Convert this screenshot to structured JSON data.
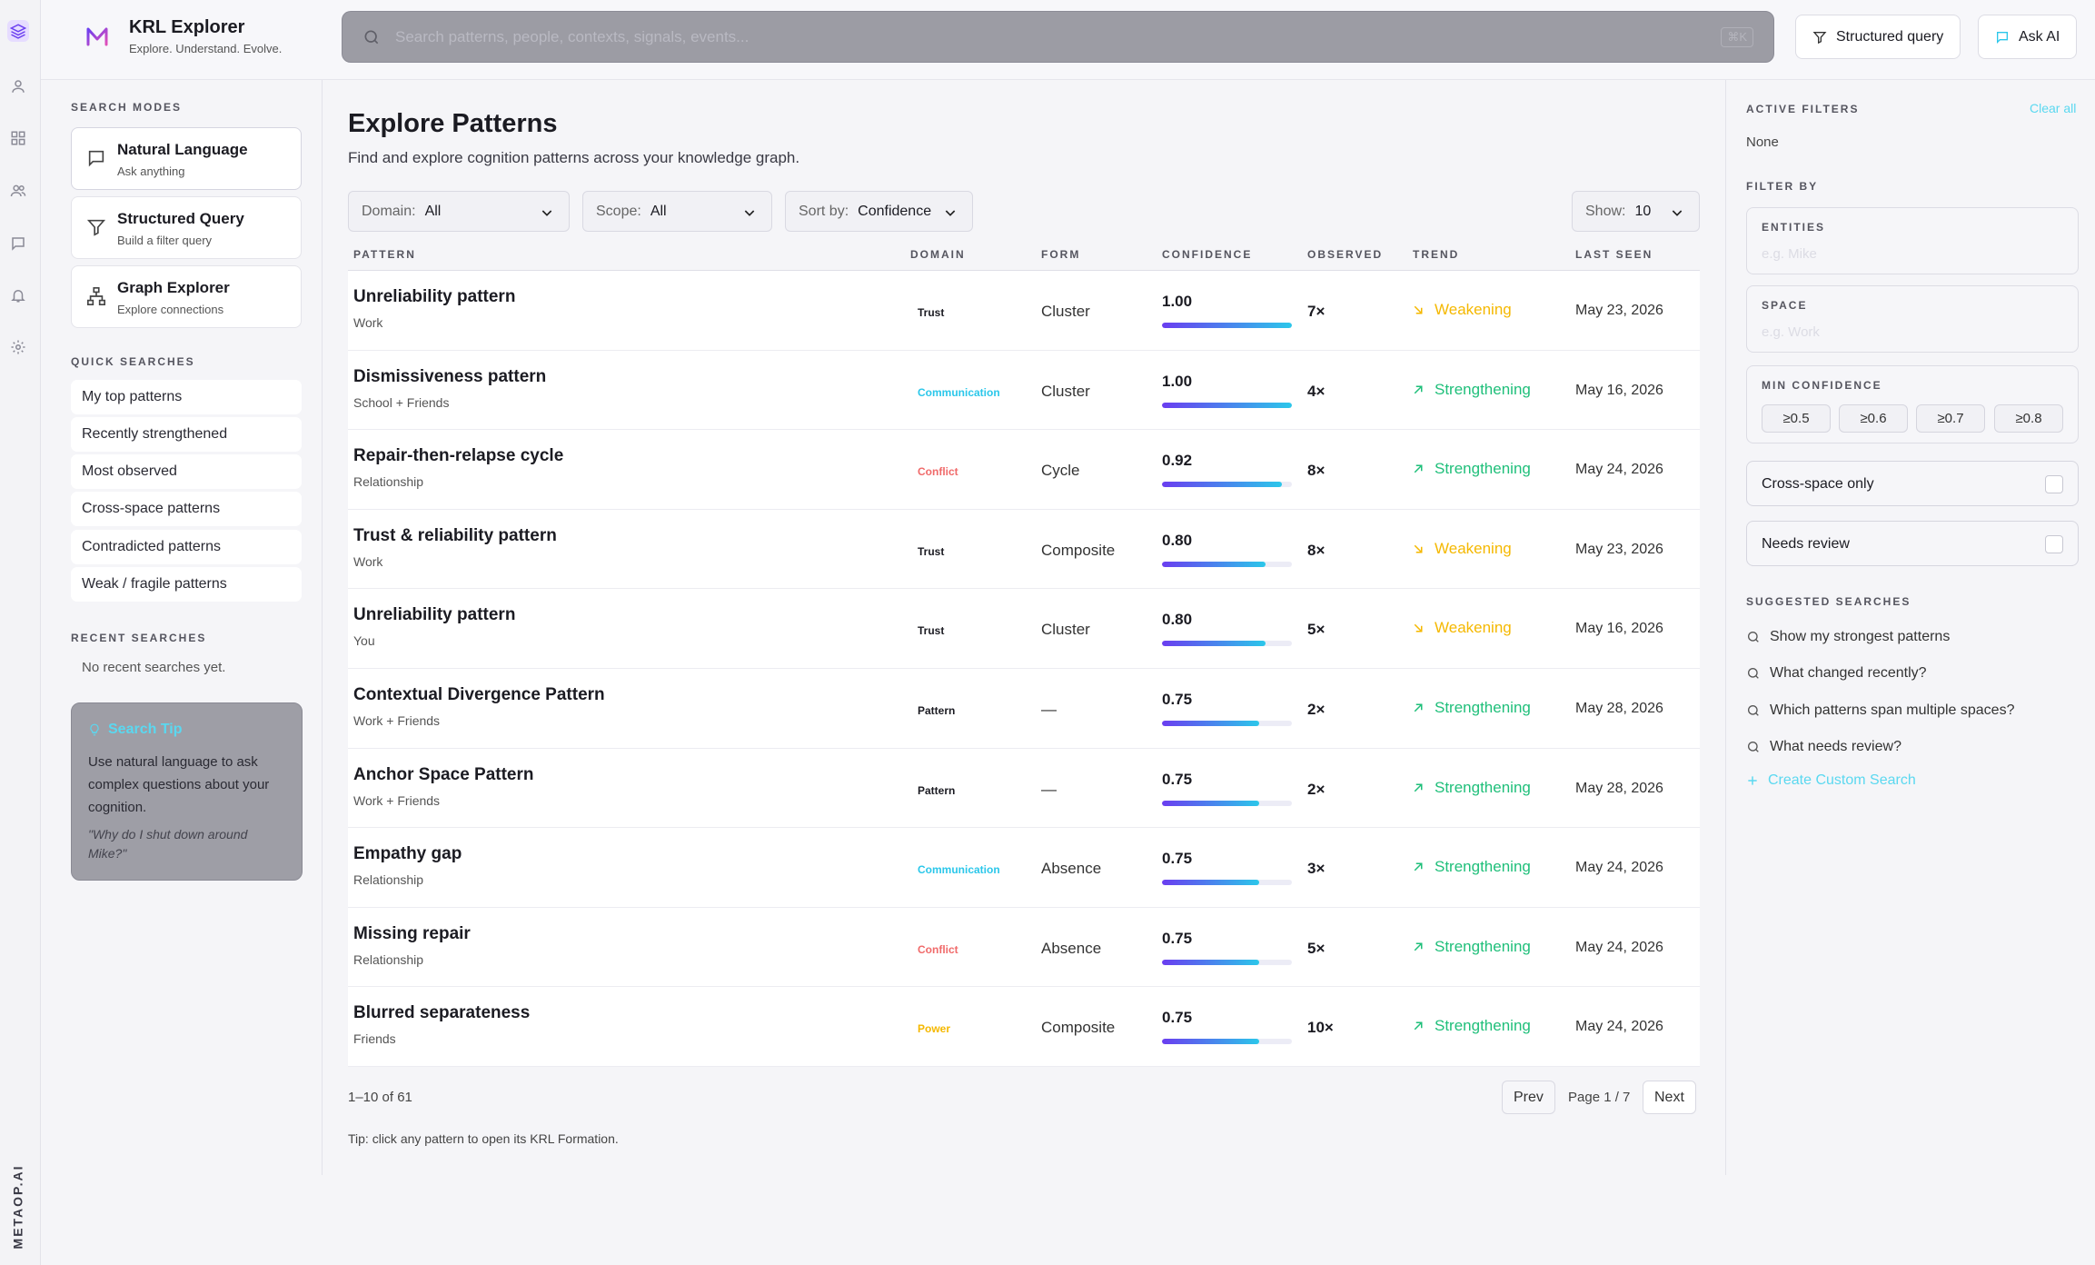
{
  "app": {
    "title": "KRL Explorer",
    "subtitle": "Explore. Understand. Evolve.",
    "brand": "METAOP.AI"
  },
  "search": {
    "placeholder": "Search patterns, people, contexts, signals, events...",
    "shortcut": "⌘K"
  },
  "topbar": {
    "structured_query_label": "Structured query",
    "ask_ai_label": "Ask AI"
  },
  "rail": {
    "icons": [
      "layers-icon",
      "user-icon",
      "grid-icon",
      "users-icon",
      "chat-icon",
      "bell-icon",
      "gear-icon"
    ]
  },
  "left": {
    "search_modes_title": "SEARCH MODES",
    "modes": [
      {
        "title": "Natural Language",
        "sub": "Ask anything"
      },
      {
        "title": "Structured Query",
        "sub": "Build a filter query"
      },
      {
        "title": "Graph Explorer",
        "sub": "Explore connections"
      }
    ],
    "quick_title": "QUICK SEARCHES",
    "quick": [
      "My top patterns",
      "Recently strengthened",
      "Most observed",
      "Cross-space patterns",
      "Contradicted patterns",
      "Weak / fragile patterns"
    ],
    "recent_title": "RECENT SEARCHES",
    "recent_empty": "No recent searches yet.",
    "tip": {
      "title": "Search Tip",
      "body": "Use natural language to ask complex questions about your cognition.",
      "quote": "\"Why do I shut down around Mike?\""
    }
  },
  "main": {
    "title": "Explore Patterns",
    "description": "Find and explore cognition patterns across your knowledge graph.",
    "filters": {
      "domain_label": "Domain:",
      "domain_value": "All",
      "scope_label": "Scope:",
      "scope_value": "All",
      "sort_label": "Sort by:",
      "sort_value": "Confidence",
      "show_label": "Show:",
      "show_value": "10"
    },
    "columns": [
      "PATTERN",
      "DOMAIN",
      "FORM",
      "CONFIDENCE",
      "OBSERVED",
      "TREND",
      "LAST SEEN"
    ],
    "rows": [
      {
        "name": "Unreliability pattern",
        "space": "Work",
        "domain": "Trust",
        "form": "Cluster",
        "confidence": "1.00",
        "observed": "7×",
        "trend": "Weakening",
        "last_seen": "May 23, 2026"
      },
      {
        "name": "Dismissiveness pattern",
        "space": "School + Friends",
        "domain": "Communication",
        "form": "Cluster",
        "confidence": "1.00",
        "observed": "4×",
        "trend": "Strengthening",
        "last_seen": "May 16, 2026"
      },
      {
        "name": "Repair-then-relapse cycle",
        "space": "Relationship",
        "domain": "Conflict",
        "form": "Cycle",
        "confidence": "0.92",
        "observed": "8×",
        "trend": "Strengthening",
        "last_seen": "May 24, 2026"
      },
      {
        "name": "Trust & reliability pattern",
        "space": "Work",
        "domain": "Trust",
        "form": "Composite",
        "confidence": "0.80",
        "observed": "8×",
        "trend": "Weakening",
        "last_seen": "May 23, 2026"
      },
      {
        "name": "Unreliability pattern",
        "space": "You",
        "domain": "Trust",
        "form": "Cluster",
        "confidence": "0.80",
        "observed": "5×",
        "trend": "Weakening",
        "last_seen": "May 16, 2026"
      },
      {
        "name": "Contextual Divergence Pattern",
        "space": "Work + Friends",
        "domain": "Pattern",
        "form": "—",
        "confidence": "0.75",
        "observed": "2×",
        "trend": "Strengthening",
        "last_seen": "May 28, 2026"
      },
      {
        "name": "Anchor Space Pattern",
        "space": "Work + Friends",
        "domain": "Pattern",
        "form": "—",
        "confidence": "0.75",
        "observed": "2×",
        "trend": "Strengthening",
        "last_seen": "May 28, 2026"
      },
      {
        "name": "Empathy gap",
        "space": "Relationship",
        "domain": "Communication",
        "form": "Absence",
        "confidence": "0.75",
        "observed": "3×",
        "trend": "Strengthening",
        "last_seen": "May 24, 2026"
      },
      {
        "name": "Missing repair",
        "space": "Relationship",
        "domain": "Conflict",
        "form": "Absence",
        "confidence": "0.75",
        "observed": "5×",
        "trend": "Strengthening",
        "last_seen": "May 24, 2026"
      },
      {
        "name": "Blurred separateness",
        "space": "Friends",
        "domain": "Power",
        "form": "Composite",
        "confidence": "0.75",
        "observed": "10×",
        "trend": "Strengthening",
        "last_seen": "May 24, 2026"
      }
    ],
    "count": "1–10 of 61",
    "prev_label": "Prev",
    "page_info": "Page 1 / 7",
    "next_label": "Next",
    "hint": "Tip: click any pattern to open its KRL Formation."
  },
  "right": {
    "active_filters_title": "ACTIVE FILTERS",
    "clear_all": "Clear all",
    "active_none": "None",
    "filter_by_title": "FILTER BY",
    "entities_label": "ENTITIES",
    "entities_placeholder": "e.g. Mike",
    "space_label": "SPACE",
    "space_placeholder": "e.g. Work",
    "min_conf_label": "MIN CONFIDENCE",
    "min_conf_options": [
      "≥0.5",
      "≥0.6",
      "≥0.7",
      "≥0.8"
    ],
    "cross_space_label": "Cross-space only",
    "needs_review_label": "Needs review",
    "suggested_title": "SUGGESTED SEARCHES",
    "suggested": [
      "Show my strongest patterns",
      "What changed recently?",
      "Which patterns span multiple spaces?",
      "What needs review?"
    ],
    "create_label": "Create Custom Search"
  },
  "colors": {
    "accent": "#6b3ff0",
    "cyan": "#2bc7ea",
    "weakening": "#f5b800",
    "strengthening": "#1fbf7a",
    "domain_trust": "#1b1b22",
    "domain_communication": "#2bc7ea",
    "domain_conflict": "#f06a6a",
    "domain_pattern": "#1b1b22",
    "domain_power": "#f5b800"
  }
}
